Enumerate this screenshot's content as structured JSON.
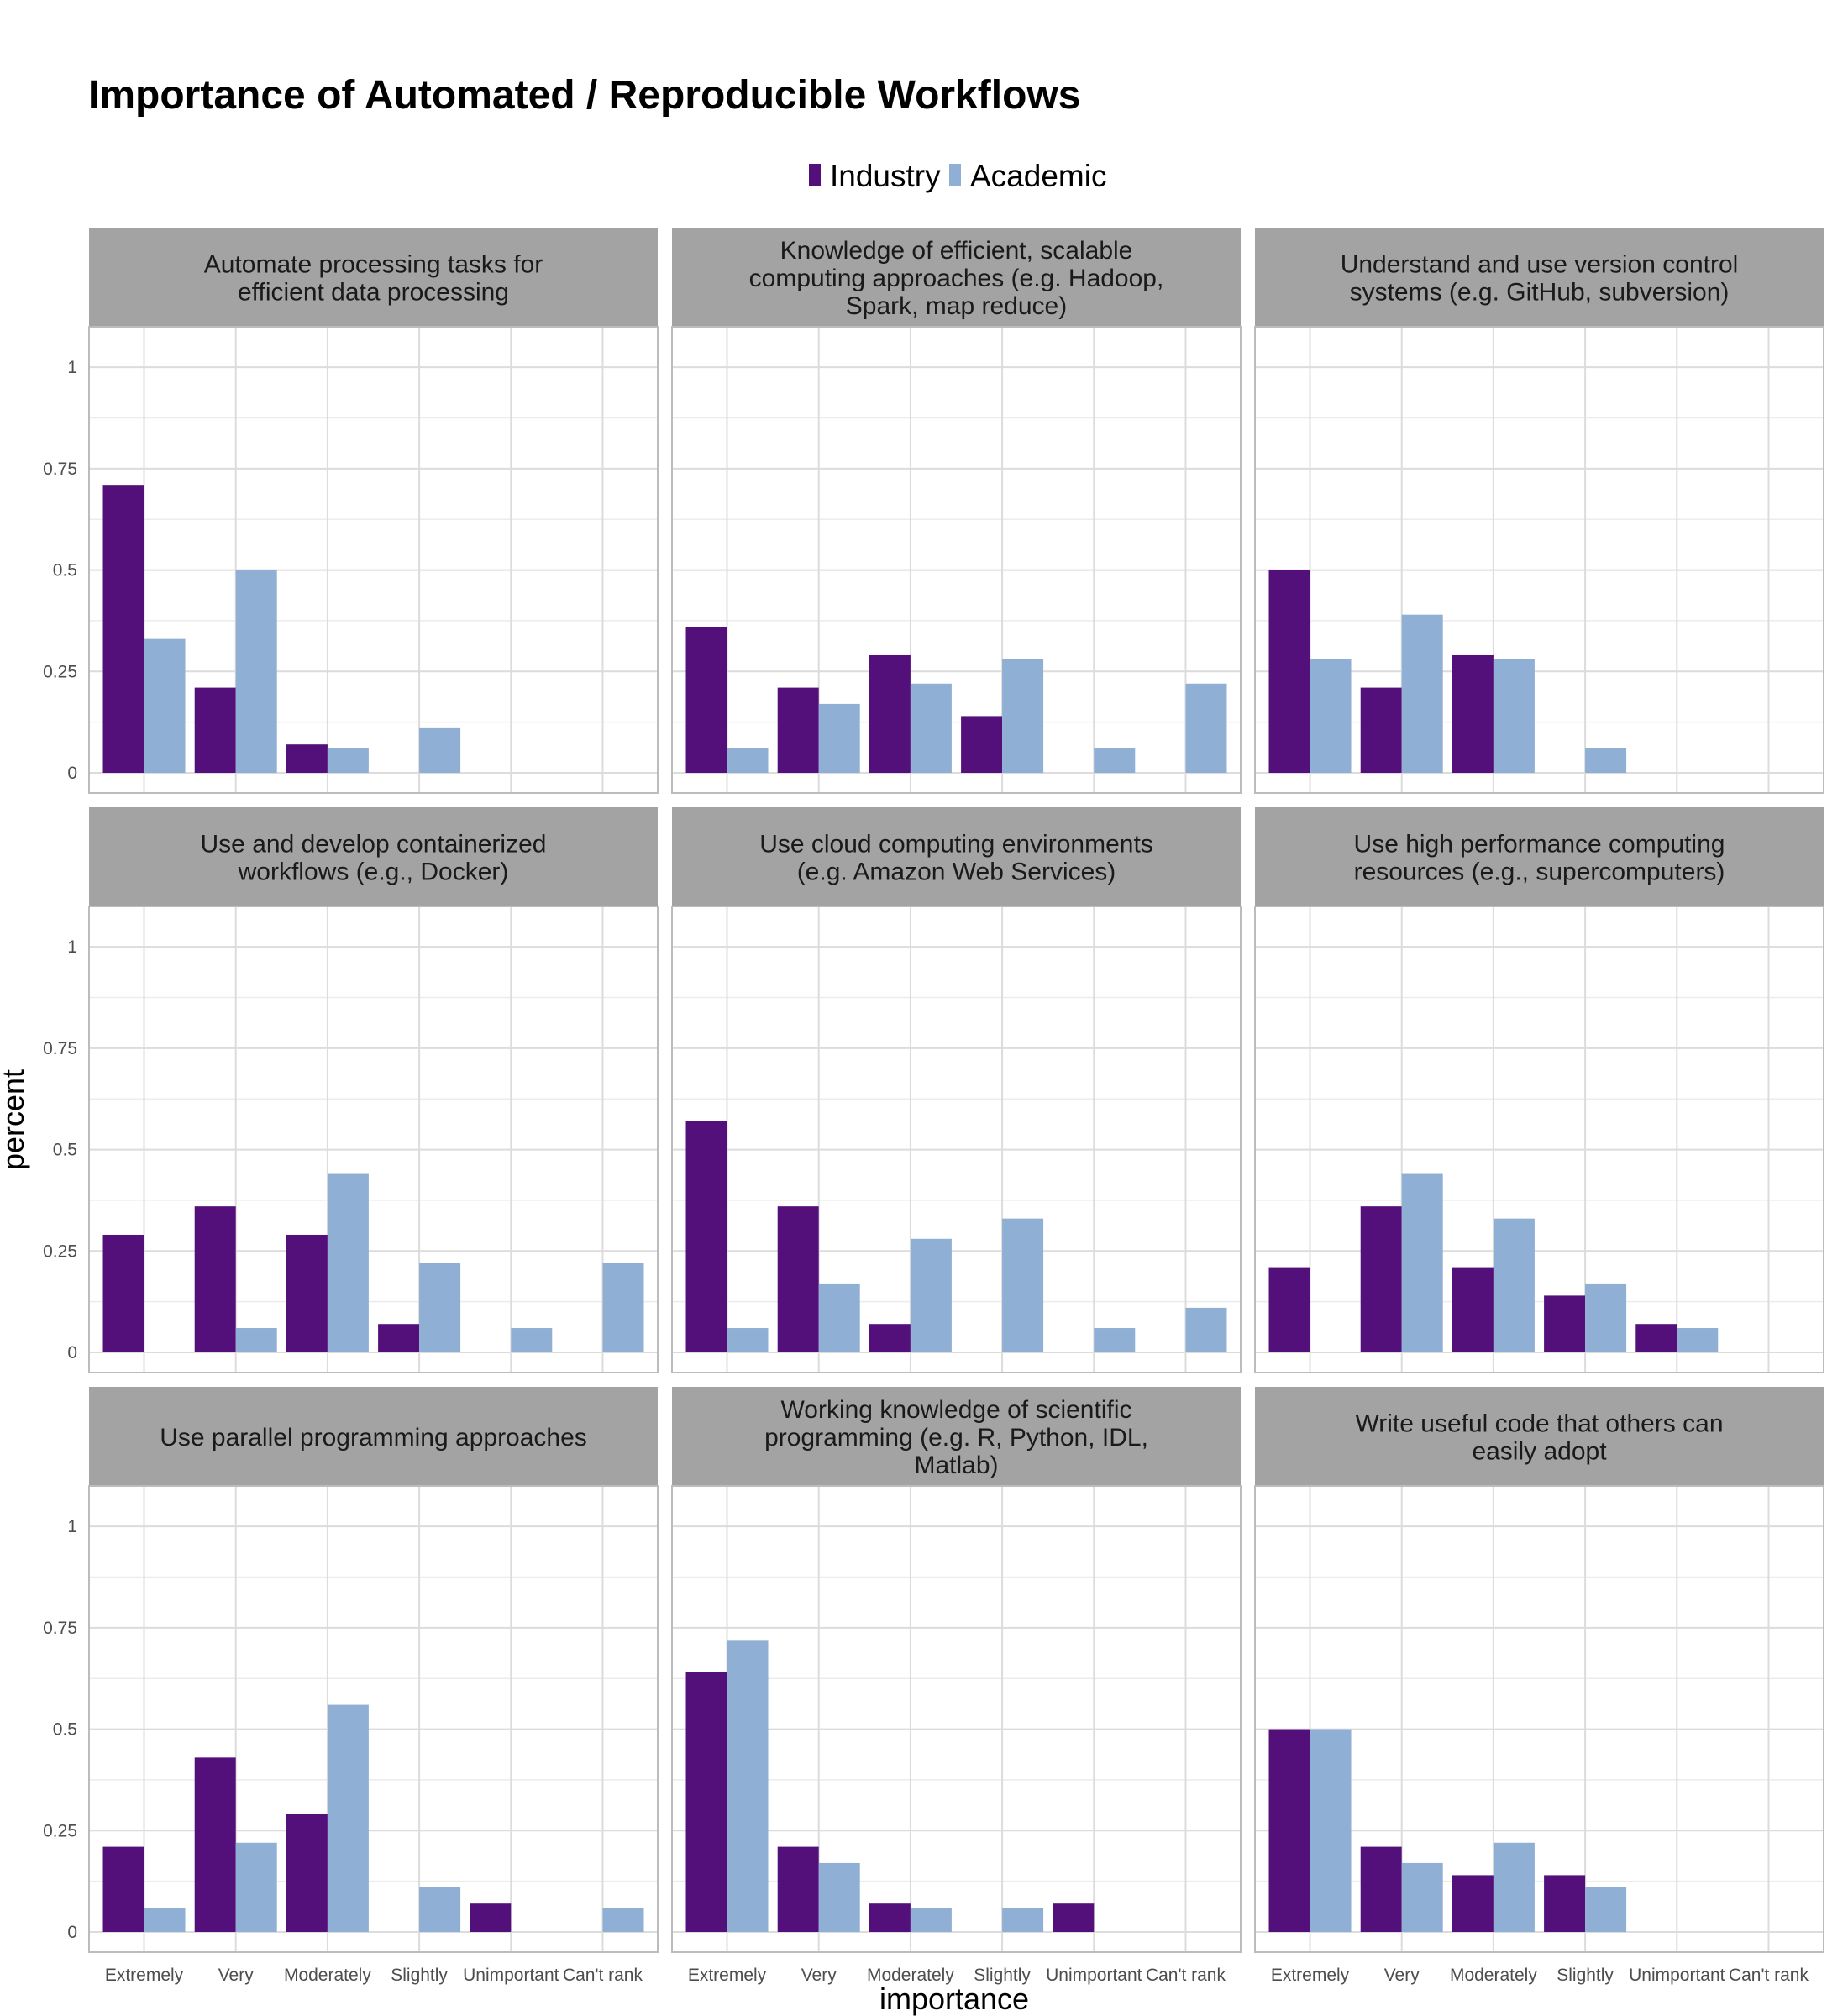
{
  "chart_data": {
    "type": "bar",
    "title": "Importance of Automated / Reproducible Workflows",
    "xlabel": "importance",
    "ylabel": "percent",
    "ylim": [
      0,
      1.05
    ],
    "yticks": [
      0,
      0.25,
      0.5,
      0.75,
      1
    ],
    "ytick_labels": [
      "0",
      "0.25",
      "0.5",
      "0.75",
      "1"
    ],
    "categories": [
      "Extremely",
      "Very",
      "Moderately",
      "Slightly",
      "Unimportant",
      "Can't rank"
    ],
    "legend": {
      "placement": "top-center",
      "entries": [
        {
          "name": "Industry",
          "color": "#54107a"
        },
        {
          "name": "Academic",
          "color": "#8fafd5"
        }
      ]
    },
    "grid": true,
    "colors": {
      "industry": "#54107a",
      "academic": "#8fafd5",
      "strip": "#a3a3a3",
      "grid": "#dcdcdc",
      "panel_border": "#bcbcbc"
    },
    "panels": [
      {
        "title_lines": [
          "Automate processing tasks for",
          "efficient data processing"
        ],
        "series": [
          {
            "name": "Industry",
            "values": [
              0.71,
              0.21,
              0.07,
              0,
              0,
              0
            ]
          },
          {
            "name": "Academic",
            "values": [
              0.33,
              0.5,
              0.06,
              0.11,
              0,
              0
            ]
          }
        ]
      },
      {
        "title_lines": [
          "Knowledge of efficient, scalable",
          "computing approaches (e.g. Hadoop,",
          "Spark, map reduce)"
        ],
        "series": [
          {
            "name": "Industry",
            "values": [
              0.36,
              0.21,
              0.29,
              0.14,
              0,
              0
            ]
          },
          {
            "name": "Academic",
            "values": [
              0.06,
              0.17,
              0.22,
              0.28,
              0.06,
              0.22
            ]
          }
        ]
      },
      {
        "title_lines": [
          "Understand and use version control",
          "systems (e.g. GitHub, subversion)"
        ],
        "series": [
          {
            "name": "Industry",
            "values": [
              0.5,
              0.21,
              0.29,
              0,
              0,
              0
            ]
          },
          {
            "name": "Academic",
            "values": [
              0.28,
              0.39,
              0.28,
              0.06,
              0,
              0
            ]
          }
        ]
      },
      {
        "title_lines": [
          "Use and develop containerized",
          "workflows (e.g., Docker)"
        ],
        "series": [
          {
            "name": "Industry",
            "values": [
              0.29,
              0.36,
              0.29,
              0.07,
              0,
              0
            ]
          },
          {
            "name": "Academic",
            "values": [
              0,
              0.06,
              0.44,
              0.22,
              0.06,
              0.22
            ]
          }
        ]
      },
      {
        "title_lines": [
          "Use cloud computing environments",
          "(e.g.  Amazon Web Services)"
        ],
        "series": [
          {
            "name": "Industry",
            "values": [
              0.57,
              0.36,
              0.07,
              0,
              0,
              0
            ]
          },
          {
            "name": "Academic",
            "values": [
              0.06,
              0.17,
              0.28,
              0.33,
              0.06,
              0.11
            ]
          }
        ]
      },
      {
        "title_lines": [
          "Use high performance computing",
          "resources (e.g., supercomputers)"
        ],
        "series": [
          {
            "name": "Industry",
            "values": [
              0.21,
              0.36,
              0.21,
              0.14,
              0.07,
              0
            ]
          },
          {
            "name": "Academic",
            "values": [
              0,
              0.44,
              0.33,
              0.17,
              0.06,
              0
            ]
          }
        ]
      },
      {
        "title_lines": [
          "Use parallel programming approaches"
        ],
        "series": [
          {
            "name": "Industry",
            "values": [
              0.21,
              0.43,
              0.29,
              0,
              0.07,
              0
            ]
          },
          {
            "name": "Academic",
            "values": [
              0.06,
              0.22,
              0.56,
              0.11,
              0,
              0.06
            ]
          }
        ]
      },
      {
        "title_lines": [
          "Working knowledge of scientific",
          "programming (e.g. R, Python, IDL,",
          "Matlab)"
        ],
        "series": [
          {
            "name": "Industry",
            "values": [
              0.64,
              0.21,
              0.07,
              0,
              0.07,
              0
            ]
          },
          {
            "name": "Academic",
            "values": [
              0.72,
              0.17,
              0.06,
              0.06,
              0,
              0
            ]
          }
        ]
      },
      {
        "title_lines": [
          "Write useful code that others can",
          "easily adopt"
        ],
        "series": [
          {
            "name": "Industry",
            "values": [
              0.5,
              0.21,
              0.14,
              0.14,
              0,
              0
            ]
          },
          {
            "name": "Academic",
            "values": [
              0.5,
              0.17,
              0.22,
              0.11,
              0,
              0
            ]
          }
        ]
      }
    ]
  }
}
